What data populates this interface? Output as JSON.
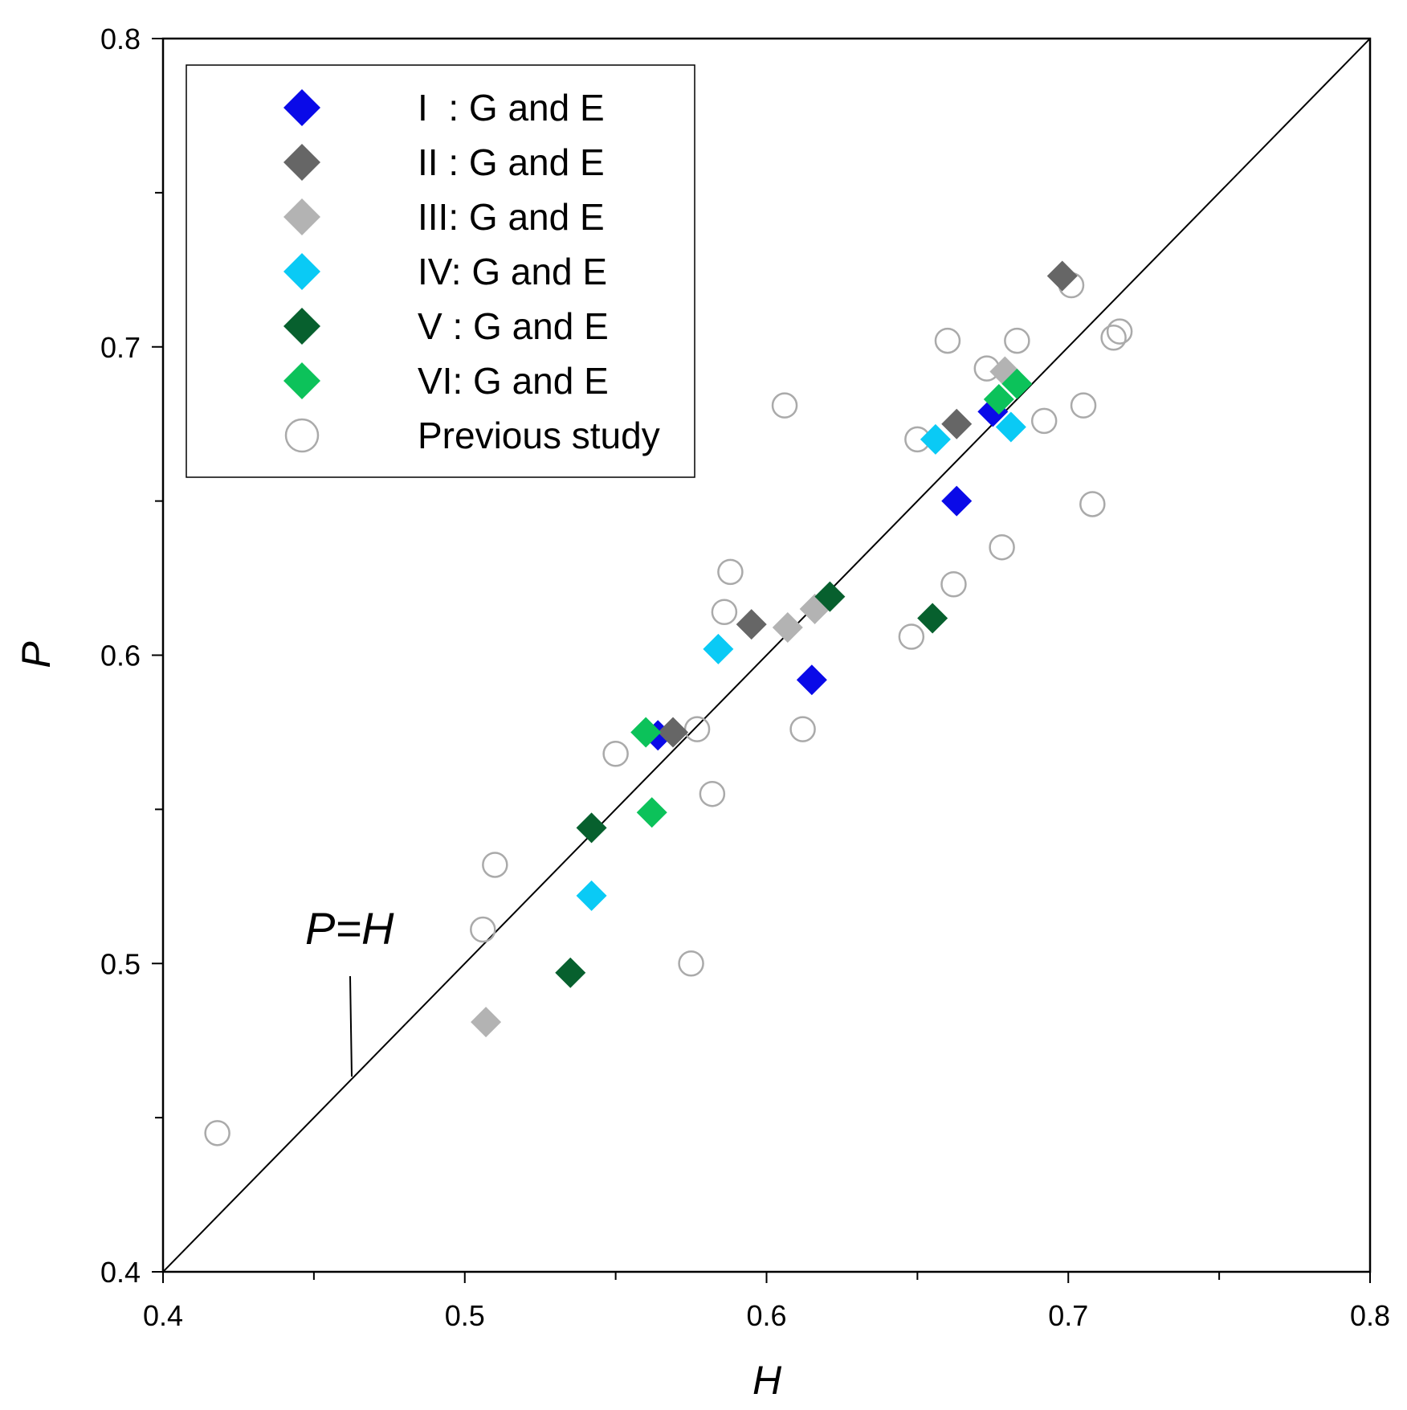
{
  "chart_data": {
    "type": "scatter",
    "title": "",
    "xlabel": "H",
    "ylabel": "P",
    "xlim": [
      0.4,
      0.8
    ],
    "ylim": [
      0.4,
      0.8
    ],
    "x_ticks": [
      "0.4",
      "0.5",
      "0.6",
      "0.7",
      "0.8"
    ],
    "y_ticks": [
      "0.4",
      "0.5",
      "0.6",
      "0.7",
      "0.8"
    ],
    "grid": false,
    "legend_position": "top-left",
    "reference_line": {
      "label": "P=H",
      "from": [
        0.4,
        0.4
      ],
      "to": [
        0.8,
        0.8
      ]
    },
    "annotation": {
      "text": "P=H",
      "points_to": [
        0.462,
        0.462
      ]
    },
    "series": [
      {
        "name": "I  : G and E",
        "marker": "diamond",
        "color": "#0a0ae8",
        "points": [
          [
            0.564,
            0.574
          ],
          [
            0.615,
            0.592
          ],
          [
            0.663,
            0.65
          ],
          [
            0.675,
            0.679
          ]
        ]
      },
      {
        "name": "II : G and E",
        "marker": "diamond",
        "color": "#666666",
        "points": [
          [
            0.569,
            0.575
          ],
          [
            0.595,
            0.61
          ],
          [
            0.663,
            0.675
          ],
          [
            0.698,
            0.723
          ]
        ]
      },
      {
        "name": "III: G and E",
        "marker": "diamond",
        "color": "#b3b3b3",
        "points": [
          [
            0.507,
            0.481
          ],
          [
            0.607,
            0.609
          ],
          [
            0.616,
            0.615
          ],
          [
            0.679,
            0.692
          ]
        ]
      },
      {
        "name": "IV: G and E",
        "marker": "diamond",
        "color": "#0acaf5",
        "points": [
          [
            0.542,
            0.522
          ],
          [
            0.584,
            0.602
          ],
          [
            0.656,
            0.67
          ],
          [
            0.681,
            0.674
          ]
        ]
      },
      {
        "name": "V : G and E",
        "marker": "diamond",
        "color": "#07602e",
        "points": [
          [
            0.535,
            0.497
          ],
          [
            0.542,
            0.544
          ],
          [
            0.621,
            0.619
          ],
          [
            0.655,
            0.612
          ]
        ]
      },
      {
        "name": "VI: G and E",
        "marker": "diamond",
        "color": "#0cc25a",
        "points": [
          [
            0.56,
            0.575
          ],
          [
            0.562,
            0.549
          ],
          [
            0.677,
            0.683
          ],
          [
            0.683,
            0.688
          ]
        ]
      },
      {
        "name": "Previous study",
        "marker": "open-circle",
        "color": "#aaaaaa",
        "points": [
          [
            0.418,
            0.445
          ],
          [
            0.506,
            0.511
          ],
          [
            0.51,
            0.532
          ],
          [
            0.55,
            0.568
          ],
          [
            0.575,
            0.5
          ],
          [
            0.577,
            0.576
          ],
          [
            0.582,
            0.555
          ],
          [
            0.586,
            0.614
          ],
          [
            0.588,
            0.627
          ],
          [
            0.606,
            0.681
          ],
          [
            0.612,
            0.576
          ],
          [
            0.648,
            0.606
          ],
          [
            0.65,
            0.67
          ],
          [
            0.66,
            0.702
          ],
          [
            0.662,
            0.623
          ],
          [
            0.673,
            0.693
          ],
          [
            0.678,
            0.635
          ],
          [
            0.683,
            0.702
          ],
          [
            0.692,
            0.676
          ],
          [
            0.701,
            0.72
          ],
          [
            0.705,
            0.681
          ],
          [
            0.708,
            0.649
          ],
          [
            0.715,
            0.703
          ],
          [
            0.717,
            0.705
          ]
        ]
      }
    ]
  }
}
